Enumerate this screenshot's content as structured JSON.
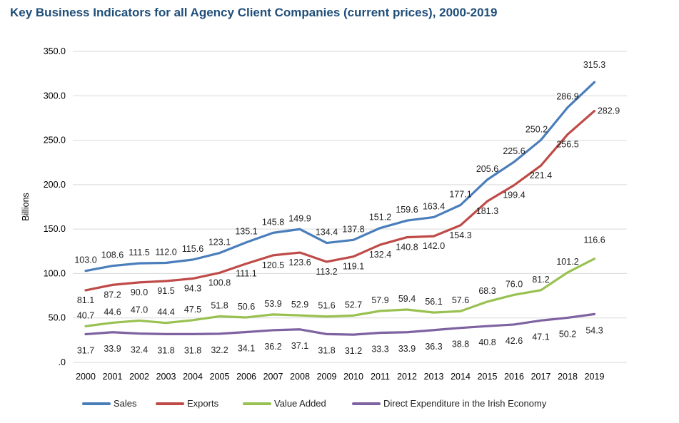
{
  "chart_data": {
    "type": "line",
    "title": "Key Business Indicators for all Agency Client Companies (current prices), 2000-2019",
    "xlabel": "",
    "ylabel": "Billions",
    "ylim": [
      0,
      350
    ],
    "yticks": [
      ".0",
      "50.0",
      "100.0",
      "150.0",
      "200.0",
      "250.0",
      "300.0",
      "350.0"
    ],
    "grid": true,
    "legend": "bottom",
    "categories": [
      "2000",
      "2001",
      "2002",
      "2003",
      "2004",
      "2005",
      "2006",
      "2007",
      "2008",
      "2009",
      "2010",
      "2011",
      "2012",
      "2013",
      "2014",
      "2015",
      "2016",
      "2017",
      "2018",
      "2019"
    ],
    "series": [
      {
        "name": "Sales",
        "color": "#4a7ebb",
        "values": [
          103.0,
          108.6,
          111.5,
          112.0,
          115.6,
          123.1,
          135.1,
          145.8,
          149.9,
          134.4,
          137.8,
          151.2,
          159.6,
          163.4,
          177.1,
          205.6,
          225.6,
          250.2,
          286.9,
          315.3
        ]
      },
      {
        "name": "Exports",
        "color": "#be4b48",
        "values": [
          81.1,
          87.2,
          90.0,
          91.5,
          94.3,
          100.8,
          111.1,
          120.5,
          123.6,
          113.2,
          119.1,
          132.4,
          140.8,
          142.0,
          154.3,
          181.3,
          199.4,
          221.4,
          256.5,
          282.9
        ]
      },
      {
        "name": "Value Added",
        "color": "#98c151",
        "values": [
          40.7,
          44.6,
          47.0,
          44.4,
          47.5,
          51.8,
          50.6,
          53.9,
          52.9,
          51.6,
          52.7,
          57.9,
          59.4,
          56.1,
          57.6,
          68.3,
          76.0,
          81.2,
          101.2,
          116.6
        ]
      },
      {
        "name": "Direct Expenditure in the Irish Economy",
        "color": "#7e62a1",
        "values": [
          31.7,
          33.9,
          32.4,
          31.8,
          31.8,
          32.2,
          34.1,
          36.2,
          37.1,
          31.8,
          31.2,
          33.3,
          33.9,
          36.3,
          38.8,
          40.8,
          42.6,
          47.1,
          50.2,
          54.3
        ]
      }
    ]
  }
}
